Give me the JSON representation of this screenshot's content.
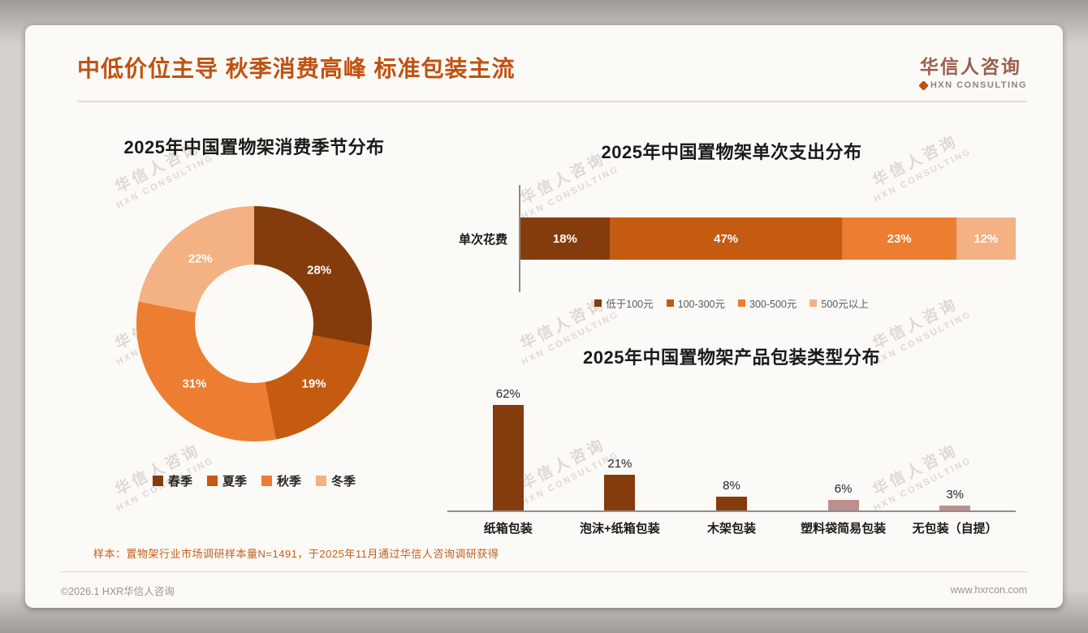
{
  "header": {
    "title": "中低价位主导 秋季消费高峰 标准包装主流",
    "logo": {
      "name": "华信人咨询",
      "subtitle": "HXN CONSULTING"
    }
  },
  "watermark": {
    "line1": "华信人咨询",
    "line2": "HXN CONSULTING"
  },
  "chart_data": [
    {
      "type": "pie",
      "donut": true,
      "title": "2025年中国置物架消费季节分布",
      "categories": [
        "春季",
        "夏季",
        "秋季",
        "冬季"
      ],
      "values": [
        28,
        19,
        31,
        22
      ],
      "labels": [
        "28%",
        "19%",
        "31%",
        "22%"
      ],
      "colors": [
        "#843C0C",
        "#C55A11",
        "#ED7D31",
        "#F4B183"
      ],
      "legend_position": "bottom"
    },
    {
      "type": "bar",
      "subtype": "stacked_horizontal",
      "title": "2025年中国置物架单次支出分布",
      "row_label": "单次花费",
      "segments": [
        {
          "label": "低于100元",
          "value": 18,
          "display": "18%",
          "color": "#843C0C"
        },
        {
          "label": "100-300元",
          "value": 47,
          "display": "47%",
          "color": "#C55A11"
        },
        {
          "label": "300-500元",
          "value": 23,
          "display": "23%",
          "color": "#ED7D31"
        },
        {
          "label": "500元以上",
          "value": 12,
          "display": "12%",
          "color": "#F4B183"
        }
      ],
      "legend_position": "bottom"
    },
    {
      "type": "bar",
      "title": "2025年中国置物架产品包装类型分布",
      "categories": [
        "纸箱包装",
        "泡沫+纸箱包装",
        "木架包装",
        "塑料袋简易包装",
        "无包装（自提）"
      ],
      "values": [
        62,
        21,
        8,
        6,
        3
      ],
      "labels": [
        "62%",
        "21%",
        "8%",
        "6%",
        "3%"
      ],
      "colors": [
        "#843C0C",
        "#843C0C",
        "#843C0C",
        "#BC8F8F",
        "#BC8F8F"
      ],
      "ylim": [
        0,
        70
      ],
      "grid": false
    }
  ],
  "note": "样本：置物架行业市场调研样本量N=1491，于2025年11月通过华信人咨询调研获得",
  "footer": {
    "copyright": "©2026.1 HXR华信人咨询",
    "website": "www.hxrcon.com"
  }
}
